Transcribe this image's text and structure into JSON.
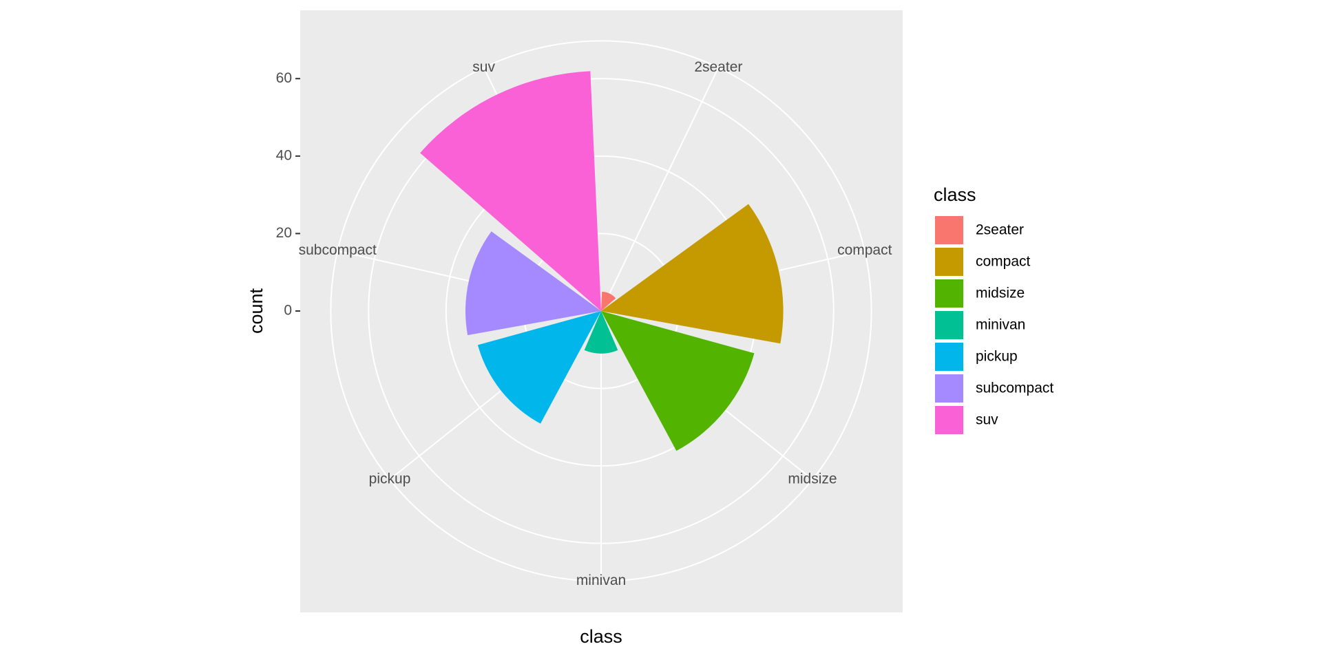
{
  "chart_data": {
    "type": "polar-bar",
    "x_label": "class",
    "y_label": "count",
    "legend_title": "class",
    "categories": [
      "2seater",
      "compact",
      "midsize",
      "minivan",
      "pickup",
      "subcompact",
      "suv"
    ],
    "values": [
      5,
      47,
      41,
      11,
      33,
      35,
      62
    ],
    "colors": [
      "#f8766d",
      "#c49a00",
      "#53b400",
      "#00c094",
      "#00b6eb",
      "#a58aff",
      "#fb61d7"
    ],
    "ylim": [
      0,
      62
    ],
    "yticks": [
      0,
      20,
      40,
      60
    ],
    "grid": true,
    "legend": "right"
  }
}
